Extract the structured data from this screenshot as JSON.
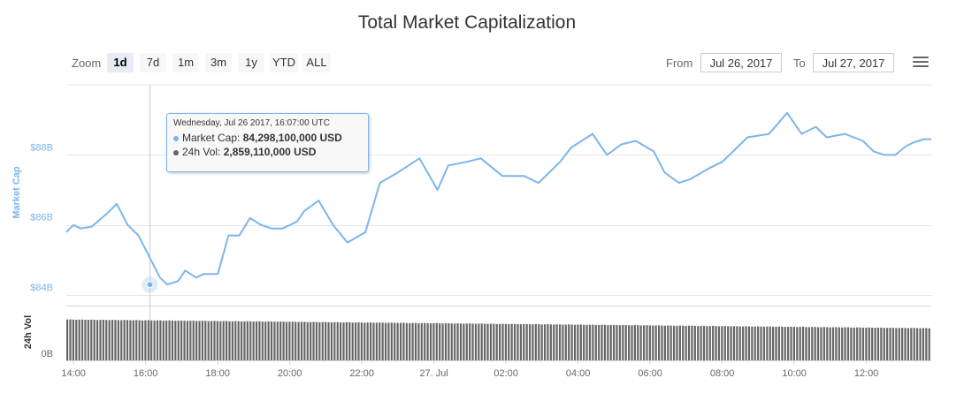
{
  "chart_data": {
    "type": "line",
    "title": "Total Market Capitalization",
    "toolbar": {
      "zoom_label": "Zoom",
      "zoom_buttons": [
        "1d",
        "7d",
        "1m",
        "3m",
        "1y",
        "YTD",
        "ALL"
      ],
      "active_zoom": "1d",
      "from_label": "From",
      "from_value": "Jul 26, 2017",
      "to_label": "To",
      "to_value": "Jul 27, 2017"
    },
    "x_tick_labels": [
      "14:00",
      "16:00",
      "18:00",
      "20:00",
      "22:00",
      "27. Jul",
      "02:00",
      "04:00",
      "06:00",
      "08:00",
      "10:00",
      "12:00"
    ],
    "x_range_hours": [
      -0.2,
      23.8
    ],
    "market_cap": {
      "ylabel": "Market Cap",
      "ylim": [
        83.7,
        90.0
      ],
      "tick_values": [
        84,
        86,
        88
      ],
      "tick_labels": [
        "$84B",
        "$86B",
        "$88B"
      ],
      "units": "USD billions",
      "x_hours": [
        -0.2,
        0.0,
        0.2,
        0.5,
        0.9,
        1.2,
        1.5,
        1.8,
        2.1,
        2.4,
        2.6,
        2.9,
        3.1,
        3.4,
        3.6,
        4.0,
        4.3,
        4.6,
        4.9,
        5.2,
        5.5,
        5.8,
        6.2,
        6.4,
        6.8,
        7.2,
        7.6,
        8.1,
        8.5,
        9.0,
        9.6,
        10.1,
        10.4,
        10.9,
        11.3,
        11.9,
        12.5,
        12.9,
        13.5,
        13.8,
        14.4,
        14.8,
        15.2,
        15.6,
        16.1,
        16.4,
        16.8,
        17.1,
        17.6,
        18.0,
        18.2,
        18.7,
        19.3,
        19.8,
        20.2,
        20.6,
        20.9,
        21.4,
        21.9,
        22.2,
        22.5,
        22.8,
        23.1,
        23.3,
        23.6,
        23.8
      ],
      "values": [
        85.8,
        86.0,
        85.9,
        85.95,
        86.3,
        86.6,
        86.0,
        85.7,
        85.1,
        84.5,
        84.3,
        84.4,
        84.7,
        84.5,
        84.6,
        84.6,
        85.7,
        85.7,
        86.2,
        86.0,
        85.9,
        85.9,
        86.1,
        86.4,
        86.7,
        86.0,
        85.5,
        85.8,
        87.2,
        87.5,
        87.9,
        87.0,
        87.7,
        87.8,
        87.9,
        87.4,
        87.4,
        87.2,
        87.8,
        88.2,
        88.6,
        88.0,
        88.3,
        88.4,
        88.1,
        87.5,
        87.2,
        87.3,
        87.6,
        87.8,
        88.0,
        88.5,
        88.6,
        89.2,
        88.6,
        88.8,
        88.5,
        88.6,
        88.4,
        88.1,
        88.0,
        88.0,
        88.25,
        88.35,
        88.45,
        88.45
      ]
    },
    "volume": {
      "ylabel": "24h Vol",
      "tick_labels": [
        "0B"
      ],
      "ylim": [
        0,
        3.4
      ],
      "units": "USD billions",
      "start_value": 2.86,
      "end_value": 2.25,
      "bar_count": 288
    },
    "tooltip": {
      "date": "Wednesday, Jul 26 2017, 16:07:00 UTC",
      "x_hour": 2.12,
      "series": [
        {
          "name": "Market Cap",
          "label": "Market Cap:",
          "value": "84,298,100,000 USD",
          "color": "#7cb5ec"
        },
        {
          "name": "24h Vol",
          "label": "24h Vol:",
          "value": "2,859,110,000 USD",
          "color": "#666666"
        }
      ]
    },
    "colors": {
      "line": "#7cb5ec",
      "volume": "#666666",
      "grid": "#e6e6e6",
      "crosshair": "#cccccc"
    }
  }
}
